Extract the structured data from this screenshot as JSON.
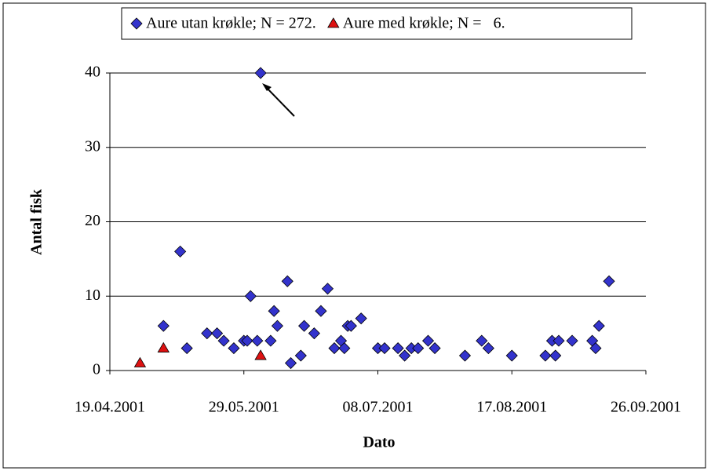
{
  "chart_data": {
    "type": "scatter",
    "y_label": "Antal fisk",
    "x_label": "Dato",
    "xlim": [
      "19.04.2001",
      "26.09.2001"
    ],
    "xticks": [
      "19.04.2001",
      "29.05.2001",
      "08.07.2001",
      "17.08.2001",
      "26.09.2001"
    ],
    "ylim": [
      0,
      40
    ],
    "yticks": [
      0,
      10,
      20,
      30,
      40
    ],
    "grid": true,
    "series": [
      {
        "name": "Aure utan krøkle; N = 272.",
        "color": "#3333cc",
        "marker": "diamond",
        "x": [
          "05.05.2001",
          "10.05.2001",
          "12.05.2001",
          "18.05.2001",
          "21.05.2001",
          "23.05.2001",
          "26.05.2001",
          "29.05.2001",
          "30.05.2001",
          "31.05.2001",
          "02.06.2001",
          "03.06.2001",
          "06.06.2001",
          "07.06.2001",
          "08.06.2001",
          "11.06.2001",
          "12.06.2001",
          "15.06.2001",
          "16.06.2001",
          "19.06.2001",
          "21.06.2001",
          "23.06.2001",
          "25.06.2001",
          "27.06.2001",
          "28.06.2001",
          "29.06.2001",
          "30.06.2001",
          "03.07.2001",
          "08.07.2001",
          "10.07.2001",
          "14.07.2001",
          "16.07.2001",
          "18.07.2001",
          "20.07.2001",
          "23.07.2001",
          "25.07.2001",
          "03.08.2001",
          "08.08.2001",
          "10.08.2001",
          "17.08.2001",
          "27.08.2001",
          "29.08.2001",
          "30.08.2001",
          "31.08.2001",
          "04.09.2001",
          "10.09.2001",
          "11.09.2001",
          "12.09.2001",
          "15.09.2001"
        ],
        "values": [
          6,
          16,
          3,
          5,
          5,
          4,
          3,
          4,
          4,
          10,
          4,
          40,
          4,
          8,
          6,
          12,
          1,
          2,
          6,
          5,
          8,
          11,
          3,
          4,
          3,
          6,
          6,
          7,
          3,
          3,
          3,
          2,
          3,
          3,
          4,
          3,
          2,
          4,
          3,
          2,
          2,
          4,
          2,
          4,
          4,
          4,
          3,
          6,
          12
        ]
      },
      {
        "name": "Aure med krøkle; N =   6.",
        "color": "#dd1111",
        "marker": "triangle",
        "x": [
          "28.04.2001",
          "05.05.2001",
          "03.06.2001"
        ],
        "values": [
          1,
          3,
          2
        ]
      }
    ]
  }
}
